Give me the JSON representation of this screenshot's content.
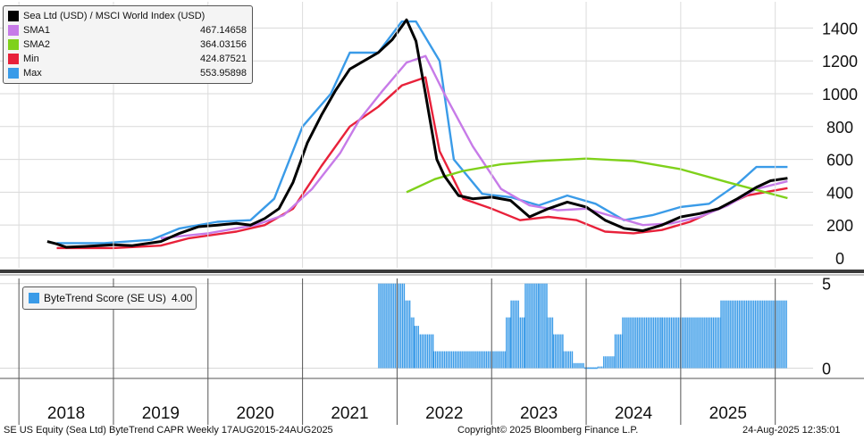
{
  "footer": {
    "left": "SE US Equity (Sea Ltd) ByteTrend CAPR   Weekly 17AUG2015-24AUG2025",
    "center": "Copyright© 2025 Bloomberg Finance L.P.",
    "right": "24-Aug-2025  12:35:01"
  },
  "legend": {
    "items": [
      {
        "label": "Sea Ltd (USD) / MSCI World Index (USD)",
        "value": "",
        "color": "#000000"
      },
      {
        "label": "SMA1",
        "value": "467.14658",
        "color": "#c77be8"
      },
      {
        "label": "SMA2",
        "value": "364.03156",
        "color": "#7fd11b"
      },
      {
        "label": "Min",
        "value": "424.87521",
        "color": "#e8213a"
      },
      {
        "label": "Max",
        "value": "553.95898",
        "color": "#3a9be8"
      }
    ]
  },
  "score_legend": {
    "label": "ByteTrend Score (SE US)",
    "value": "4.00",
    "color": "#3a9be8"
  },
  "chart_data": [
    {
      "type": "line",
      "title": "Sea Ltd (USD) / MSCI World Index (USD)",
      "ylim": [
        -60,
        1560
      ],
      "yticks": [
        0,
        200,
        400,
        600,
        800,
        1000,
        1200,
        1400
      ],
      "x_tick_labels": [
        "2018",
        "2019",
        "2020",
        "2021",
        "2022",
        "2023",
        "2024",
        "2025"
      ],
      "series": [
        {
          "name": "Sea Ltd (USD) / MSCI World Index (USD)",
          "color": "#000000",
          "x": [
            2017.8,
            2017.9,
            2018.0,
            2018.2,
            2018.5,
            2018.7,
            2019.0,
            2019.2,
            2019.4,
            2019.6,
            2019.8,
            2019.95,
            2020.1,
            2020.25,
            2020.4,
            2020.55,
            2020.7,
            2020.85,
            2021.0,
            2021.15,
            2021.3,
            2021.45,
            2021.6,
            2021.7,
            2021.8,
            2021.92,
            2022.0,
            2022.15,
            2022.3,
            2022.5,
            2022.7,
            2022.9,
            2023.1,
            2023.3,
            2023.5,
            2023.7,
            2023.9,
            2024.1,
            2024.3,
            2024.5,
            2024.7,
            2024.9,
            2025.1,
            2025.3,
            2025.45,
            2025.63
          ],
          "values": [
            100,
            85,
            65,
            70,
            80,
            75,
            100,
            150,
            190,
            200,
            210,
            200,
            240,
            300,
            460,
            700,
            870,
            1020,
            1150,
            1200,
            1250,
            1330,
            1450,
            1320,
            1000,
            600,
            500,
            380,
            360,
            370,
            350,
            250,
            300,
            340,
            310,
            230,
            180,
            165,
            200,
            250,
            270,
            300,
            360,
            430,
            470,
            485
          ]
        },
        {
          "name": "SMA1",
          "color": "#c77be8",
          "x": [
            2019.0,
            2019.5,
            2020.0,
            2020.3,
            2020.6,
            2020.9,
            2021.1,
            2021.35,
            2021.6,
            2021.8,
            2022.0,
            2022.3,
            2022.6,
            2022.9,
            2023.2,
            2023.5,
            2023.8,
            2024.1,
            2024.4,
            2024.7,
            2025.0,
            2025.3,
            2025.63
          ],
          "values": [
            120,
            150,
            200,
            260,
            420,
            640,
            840,
            1020,
            1190,
            1230,
            1000,
            680,
            420,
            320,
            290,
            300,
            250,
            200,
            210,
            250,
            320,
            420,
            467
          ]
        },
        {
          "name": "SMA2",
          "color": "#7fd11b",
          "x": [
            2021.6,
            2021.9,
            2022.2,
            2022.6,
            2023.0,
            2023.5,
            2024.0,
            2024.5,
            2025.0,
            2025.63
          ],
          "values": [
            400,
            480,
            530,
            570,
            590,
            605,
            590,
            540,
            460,
            364
          ]
        },
        {
          "name": "Min",
          "color": "#e8213a",
          "x": [
            2017.9,
            2018.5,
            2019.0,
            2019.3,
            2019.8,
            2020.1,
            2020.4,
            2020.7,
            2021.0,
            2021.3,
            2021.55,
            2021.8,
            2021.95,
            2022.2,
            2022.5,
            2022.8,
            2023.1,
            2023.4,
            2023.7,
            2024.0,
            2024.3,
            2024.6,
            2024.9,
            2025.2,
            2025.63
          ],
          "values": [
            60,
            60,
            75,
            120,
            160,
            200,
            300,
            560,
            800,
            920,
            1050,
            1100,
            650,
            360,
            300,
            230,
            250,
            230,
            160,
            150,
            170,
            220,
            300,
            380,
            425
          ]
        },
        {
          "name": "Max",
          "color": "#3a9be8",
          "x": [
            2017.9,
            2018.4,
            2018.9,
            2019.2,
            2019.6,
            2019.95,
            2020.2,
            2020.5,
            2020.8,
            2021.0,
            2021.3,
            2021.55,
            2021.7,
            2021.95,
            2022.1,
            2022.4,
            2022.7,
            2023.0,
            2023.3,
            2023.6,
            2023.9,
            2024.2,
            2024.5,
            2024.8,
            2025.1,
            2025.3,
            2025.63
          ],
          "values": [
            90,
            90,
            110,
            180,
            220,
            230,
            360,
            800,
            1000,
            1250,
            1250,
            1440,
            1440,
            1200,
            600,
            390,
            370,
            320,
            380,
            330,
            230,
            260,
            310,
            330,
            450,
            554,
            554
          ]
        }
      ]
    },
    {
      "type": "bar",
      "title": "ByteTrend Score (SE US)",
      "ylim": [
        -0.5,
        5.3
      ],
      "yticks": [
        0,
        5
      ],
      "x_start": 2021.3,
      "x_end": 2025.63,
      "step": 0.0192,
      "segments": [
        {
          "from": 2021.3,
          "to": 2021.57,
          "value": 5
        },
        {
          "from": 2021.57,
          "to": 2021.63,
          "value": 4
        },
        {
          "from": 2021.63,
          "to": 2021.68,
          "value": 3
        },
        {
          "from": 2021.68,
          "to": 2021.72,
          "value": 2.5
        },
        {
          "from": 2021.72,
          "to": 2021.88,
          "value": 2
        },
        {
          "from": 2021.88,
          "to": 2022.5,
          "value": 1
        },
        {
          "from": 2022.5,
          "to": 2022.65,
          "value": 1
        },
        {
          "from": 2022.65,
          "to": 2022.7,
          "value": 3
        },
        {
          "from": 2022.7,
          "to": 2022.78,
          "value": 4
        },
        {
          "from": 2022.78,
          "to": 2022.85,
          "value": 3
        },
        {
          "from": 2022.85,
          "to": 2023.0,
          "value": 5
        },
        {
          "from": 2023.0,
          "to": 2023.08,
          "value": 5
        },
        {
          "from": 2023.08,
          "to": 2023.15,
          "value": 3
        },
        {
          "from": 2023.15,
          "to": 2023.25,
          "value": 2
        },
        {
          "from": 2023.25,
          "to": 2023.35,
          "value": 1
        },
        {
          "from": 2023.35,
          "to": 2023.48,
          "value": 0.3
        },
        {
          "from": 2023.48,
          "to": 2023.62,
          "value": 0
        },
        {
          "from": 2023.62,
          "to": 2023.68,
          "value": 0.1
        },
        {
          "from": 2023.68,
          "to": 2023.8,
          "value": 0.7
        },
        {
          "from": 2023.8,
          "to": 2023.88,
          "value": 2
        },
        {
          "from": 2023.88,
          "to": 2024.3,
          "value": 3
        },
        {
          "from": 2024.3,
          "to": 2024.92,
          "value": 3
        },
        {
          "from": 2024.92,
          "to": 2025.63,
          "value": 4
        }
      ]
    }
  ]
}
